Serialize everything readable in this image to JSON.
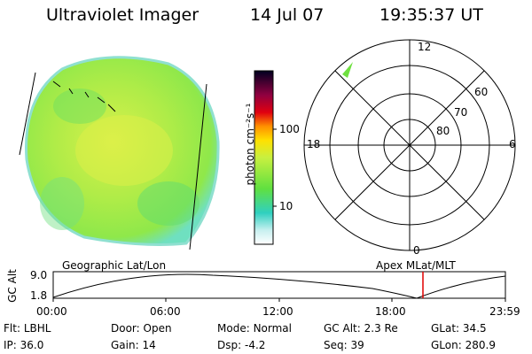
{
  "header": {
    "title": "Ultraviolet Imager",
    "date": "14 Jul 07",
    "time": "19:35:37 UT"
  },
  "colorbar": {
    "unit_label": "photon cm⁻²s⁻¹",
    "ticks": [
      "100",
      "10"
    ]
  },
  "polar_plot": {
    "hour_labels": {
      "top": "12",
      "left": "18",
      "right": "6",
      "bottom": "0"
    },
    "lat_labels": [
      "60",
      "70",
      "80"
    ]
  },
  "orbit_plot": {
    "left_label": "Geographic Lat/Lon",
    "right_label": "Apex MLat/MLT",
    "y_axis_label": "GC Alt",
    "y_ticks": [
      "9.0",
      "1.8"
    ],
    "x_ticks": [
      "00:00",
      "06:00",
      "12:00",
      "18:00",
      "23:59"
    ]
  },
  "info": {
    "flt_label": "Flt:",
    "flt_value": "LBHL",
    "door_label": "Door:",
    "door_value": "Open",
    "mode_label": "Mode:",
    "mode_value": "Normal",
    "gcalt_label": "GC Alt:",
    "gcalt_value": "2.3 Re",
    "glat_label": "GLat:",
    "glat_value": "34.5",
    "ip_label": "IP:",
    "ip_value": "36.0",
    "gain_label": "Gain:",
    "gain_value": "14",
    "dsp_label": "Dsp:",
    "dsp_value": "-4.2",
    "seq_label": "Seq:",
    "seq_value": "39",
    "glon_label": "GLon:",
    "glon_value": "280.9"
  },
  "colors": {
    "earth_green": "#8fe84a",
    "earth_yellow": "#d8f04a",
    "earth_cyan": "#6fe0c0",
    "marker_red": "#e00000"
  }
}
